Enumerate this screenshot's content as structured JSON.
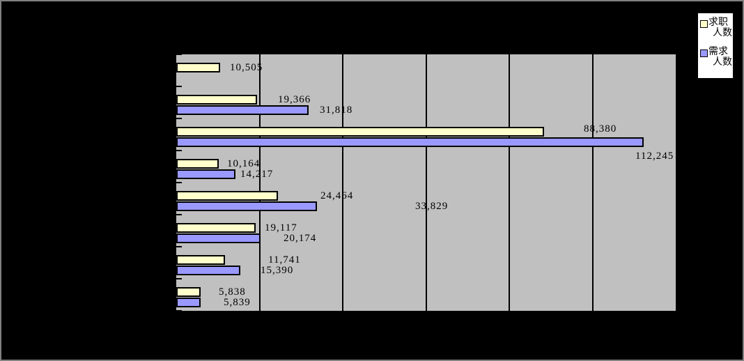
{
  "chart_data": {
    "type": "bar",
    "orientation": "horizontal",
    "title": "",
    "categories": [
      "",
      "",
      "",
      "",
      "",
      "",
      "",
      ""
    ],
    "xlim": [
      0,
      120000
    ],
    "gridlines_every": 20000,
    "grid_on": true,
    "legend_position": "top-right",
    "plot_bg": "#C0C0C0",
    "canvas_bg": "#000000",
    "gridline_color": "#000000",
    "frame_color": "#808080",
    "series": [
      {
        "key": "jobseekers",
        "name": "求职人数",
        "color": "#FFFFCC",
        "values": [
          10505,
          19366,
          88380,
          10164,
          24464,
          19117,
          11741,
          5838
        ],
        "labels": [
          "10,505",
          "19,366",
          "88,380",
          "10,164",
          "24,464",
          "19,117",
          "11,741",
          "5,838"
        ],
        "label_offsets": [
          {
            "dx": 14,
            "dy": 0
          },
          {
            "dx": 30,
            "dy": 0
          },
          {
            "dx": 57,
            "dy": -4
          },
          {
            "dx": 12,
            "dy": 0
          },
          {
            "dx": 61,
            "dy": 0
          },
          {
            "dx": 13,
            "dy": 0
          },
          {
            "dx": 62,
            "dy": 0
          },
          {
            "dx": 26,
            "dy": 0
          }
        ]
      },
      {
        "key": "demand",
        "name": "需求人数",
        "color": "#9999FF",
        "values": [
          null,
          31818,
          112245,
          14217,
          33829,
          20174,
          15390,
          5839
        ],
        "labels": [
          null,
          "31,818",
          "112,245",
          "14,217",
          "33,829",
          "20,174",
          "15,390",
          "5,839"
        ],
        "label_offsets": [
          null,
          {
            "dx": 16,
            "dy": 0
          },
          {
            "dx": -12,
            "dy": 20
          },
          {
            "dx": 7,
            "dy": 0
          },
          {
            "dx": 141,
            "dy": 0
          },
          {
            "dx": 33,
            "dy": 0
          },
          {
            "dx": 29,
            "dy": 0
          },
          {
            "dx": 33,
            "dy": 0
          }
        ]
      }
    ]
  },
  "legend": {
    "items": [
      {
        "label": "求职人数",
        "color": "#FFFFCC"
      },
      {
        "label": "需求人数",
        "color": "#9999FF"
      }
    ]
  }
}
